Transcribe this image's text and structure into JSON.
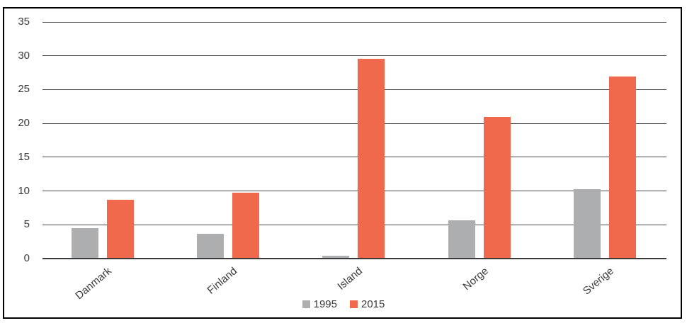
{
  "chart_data": {
    "type": "bar",
    "title": "",
    "xlabel": "",
    "ylabel": "",
    "categories": [
      "Danmark",
      "Finland",
      "Island",
      "Norge",
      "Sverige"
    ],
    "series": [
      {
        "name": "1995",
        "color": "#ACAEB0",
        "values": [
          4.5,
          3.7,
          0.4,
          5.7,
          10.3
        ]
      },
      {
        "name": "2015",
        "color": "#F0694C",
        "values": [
          8.7,
          9.7,
          29.6,
          21.0,
          26.9
        ]
      }
    ],
    "ylim": [
      0,
      35
    ],
    "yticks": [
      0,
      5,
      10,
      15,
      20,
      25,
      30,
      35
    ],
    "grid": true,
    "legend_position": "bottom-center"
  },
  "colors": {
    "frame_border": "#000000",
    "gridline": "#4d4d4d",
    "axis_baseline": "#3a3a3a",
    "text": "#3a3a3a",
    "background": "#ffffff"
  }
}
